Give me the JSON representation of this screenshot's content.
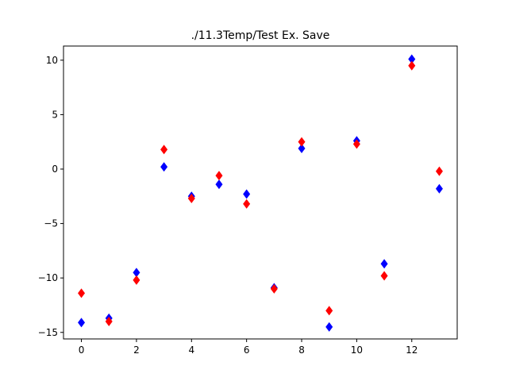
{
  "chart_data": {
    "type": "scatter",
    "title": "./11.3Temp/Test Ex. Save",
    "xlabel": "",
    "ylabel": "",
    "xlim": [
      -0.65,
      13.65
    ],
    "ylim": [
      -15.6,
      11.3
    ],
    "xticks": [
      0,
      2,
      4,
      6,
      8,
      10,
      12
    ],
    "yticks": [
      10,
      5,
      0,
      -5,
      -10,
      -15
    ],
    "ytick_labels": [
      "10",
      "5",
      "0",
      "−5",
      "−10",
      "−15"
    ],
    "grid": false,
    "marker": "diamond",
    "x": [
      0,
      1,
      2,
      3,
      4,
      5,
      6,
      7,
      8,
      9,
      10,
      11,
      12,
      13
    ],
    "series": [
      {
        "color": "#0000ff",
        "values": [
          -14.1,
          -13.7,
          -9.5,
          0.2,
          -2.5,
          -1.4,
          -2.3,
          -10.9,
          1.9,
          -14.5,
          2.6,
          -8.7,
          10.1,
          -1.8
        ]
      },
      {
        "color": "#ff0000",
        "values": [
          -11.4,
          -14.0,
          -10.2,
          1.8,
          -2.7,
          -0.6,
          -3.2,
          -11.0,
          2.5,
          -13.0,
          2.3,
          -9.8,
          9.5,
          -0.2
        ]
      }
    ]
  }
}
